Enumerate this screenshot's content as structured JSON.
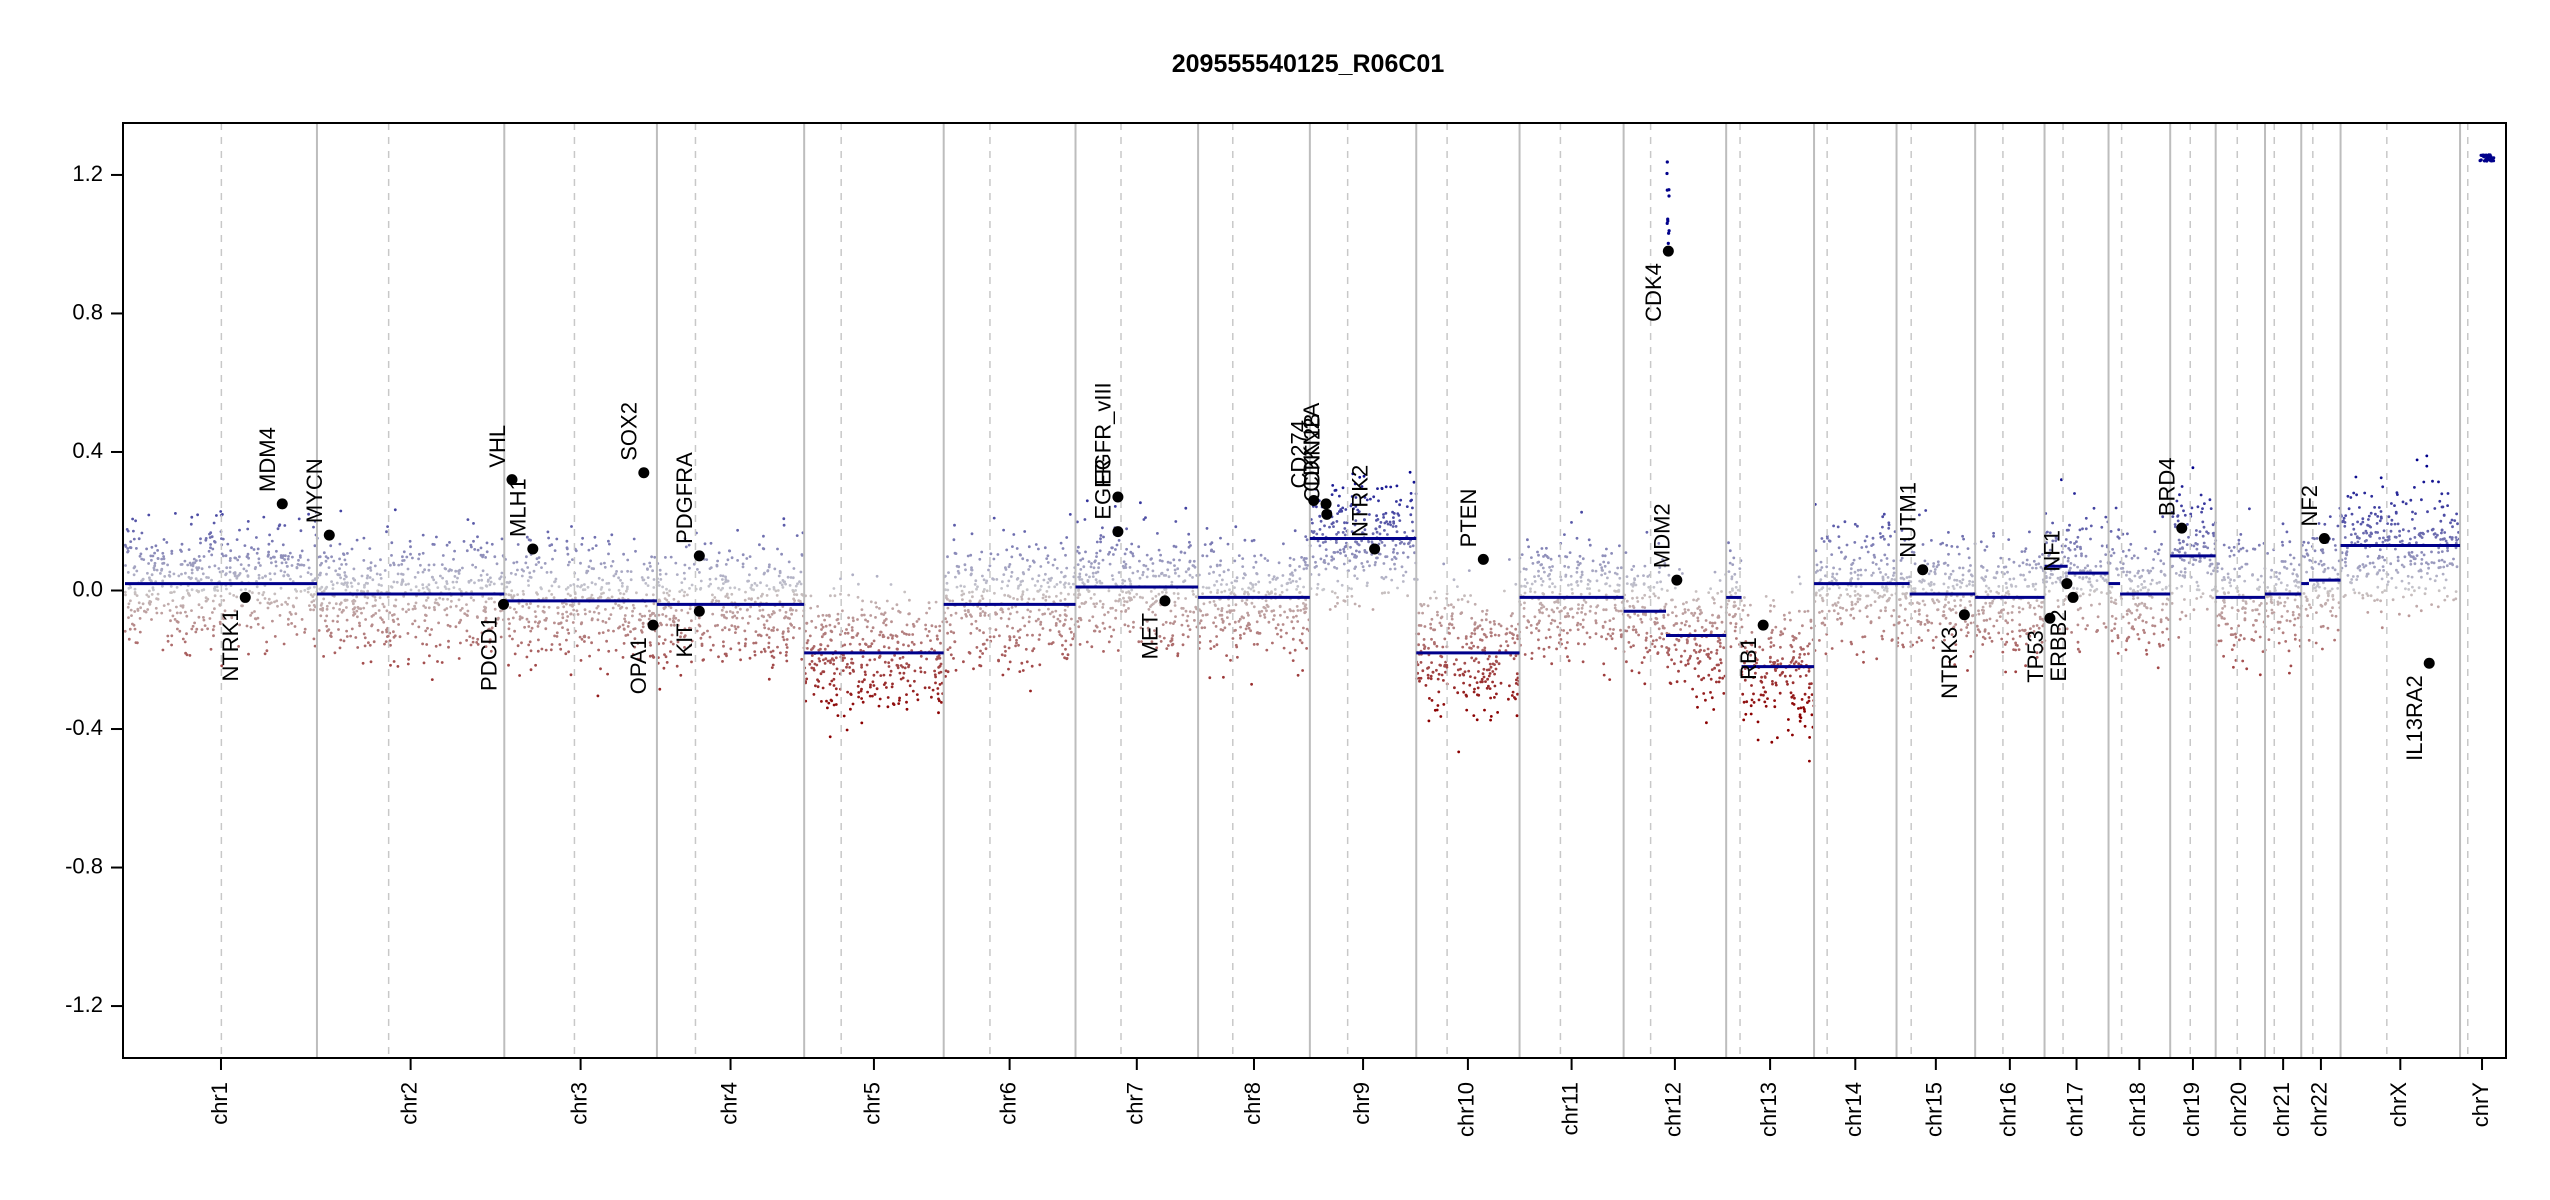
{
  "chart_data": {
    "type": "scatter",
    "title": "209555540125_R06C01",
    "xlabel": "",
    "ylabel": "",
    "ylim": [
      -1.35,
      1.35
    ],
    "yticks": [
      -1.2,
      -0.8,
      -0.4,
      0.0,
      0.4,
      0.8,
      1.2
    ],
    "ytick_labels": [
      "-1.2",
      "-0.8",
      "-0.4",
      "0.0",
      "0.4",
      "0.8",
      "1.2"
    ],
    "grid": false,
    "legend": "none",
    "colors": {
      "gain": "#00008b",
      "loss": "#8b0000",
      "neutral": "#bfbfbf",
      "segment": "#00008b",
      "chrom_boundary": "#bdbdbd",
      "centromere": "#c8c8c8",
      "marker": "#000000"
    },
    "chromosomes": [
      {
        "name": "chr1",
        "length": 249,
        "centromere": 125,
        "segment": 0.02
      },
      {
        "name": "chr2",
        "length": 243,
        "centromere": 93,
        "segment": -0.01
      },
      {
        "name": "chr3",
        "length": 198,
        "centromere": 91,
        "segment": -0.03
      },
      {
        "name": "chr4",
        "length": 191,
        "centromere": 50,
        "segment": -0.04
      },
      {
        "name": "chr5",
        "length": 181,
        "centromere": 48,
        "segment": -0.18
      },
      {
        "name": "chr6",
        "length": 171,
        "centromere": 60,
        "segment": -0.04
      },
      {
        "name": "chr7",
        "length": 159,
        "centromere": 59,
        "segment": 0.01
      },
      {
        "name": "chr8",
        "length": 145,
        "centromere": 45,
        "segment": -0.02
      },
      {
        "name": "chr9",
        "length": 138,
        "centromere": 49,
        "segment": 0.15
      },
      {
        "name": "chr10",
        "length": 134,
        "centromere": 40,
        "segment": -0.18
      },
      {
        "name": "chr11",
        "length": 135,
        "centromere": 53,
        "segment": -0.02
      },
      {
        "name": "chr12",
        "length": 133,
        "centromere": 35,
        "segments": [
          {
            "start": 0,
            "end": 55,
            "value": -0.06
          },
          {
            "start": 55,
            "end": 133,
            "value": -0.13
          }
        ]
      },
      {
        "name": "chr13",
        "length": 114,
        "centromere": 18,
        "segments": [
          {
            "start": 0,
            "end": 20,
            "value": -0.02
          },
          {
            "start": 20,
            "end": 114,
            "value": -0.22
          }
        ]
      },
      {
        "name": "chr14",
        "length": 107,
        "centromere": 17,
        "segment": 0.02
      },
      {
        "name": "chr15",
        "length": 102,
        "centromere": 19,
        "segments": [
          {
            "start": 0,
            "end": 17,
            "value": 0.02
          },
          {
            "start": 17,
            "end": 102,
            "value": -0.01
          }
        ]
      },
      {
        "name": "chr16",
        "length": 90,
        "centromere": 36,
        "segment": -0.02
      },
      {
        "name": "chr17",
        "length": 83,
        "centromere": 24,
        "segments": [
          {
            "start": 0,
            "end": 30,
            "value": 0.07
          },
          {
            "start": 30,
            "end": 83,
            "value": 0.05
          }
        ]
      },
      {
        "name": "chr18",
        "length": 80,
        "centromere": 17,
        "segments": [
          {
            "start": 0,
            "end": 15,
            "value": 0.02
          },
          {
            "start": 15,
            "end": 80,
            "value": -0.01
          }
        ]
      },
      {
        "name": "chr19",
        "length": 59,
        "centromere": 26,
        "segment": 0.1
      },
      {
        "name": "chr20",
        "length": 64,
        "centromere": 28,
        "segment": -0.02
      },
      {
        "name": "chr21",
        "length": 47,
        "centromere": 12,
        "segment": -0.01
      },
      {
        "name": "chr22",
        "length": 51,
        "centromere": 15,
        "segments": [
          {
            "start": 0,
            "end": 10,
            "value": 0.02
          },
          {
            "start": 10,
            "end": 51,
            "value": 0.03
          }
        ]
      },
      {
        "name": "chrX",
        "length": 155,
        "centromere": 60,
        "segment": 0.13
      },
      {
        "name": "chrY",
        "length": 57,
        "centromere": 10,
        "segment": null
      }
    ],
    "genes": [
      {
        "name": "NTRK1",
        "chr": "chr1",
        "pos": 156,
        "value": -0.02,
        "label_side": "below"
      },
      {
        "name": "MDM4",
        "chr": "chr1",
        "pos": 204,
        "value": 0.25,
        "label_side": "above"
      },
      {
        "name": "MYCN",
        "chr": "chr2",
        "pos": 16,
        "value": 0.16,
        "label_side": "above"
      },
      {
        "name": "PDCD1",
        "chr": "chr2",
        "pos": 242,
        "value": -0.04,
        "label_side": "below"
      },
      {
        "name": "VHL",
        "chr": "chr3",
        "pos": 10,
        "value": 0.32,
        "label_side": "above"
      },
      {
        "name": "MLH1",
        "chr": "chr3",
        "pos": 37,
        "value": 0.12,
        "label_side": "above"
      },
      {
        "name": "SOX2",
        "chr": "chr3",
        "pos": 181,
        "value": 0.34,
        "label_side": "above"
      },
      {
        "name": "OPA1",
        "chr": "chr3",
        "pos": 193,
        "value": -0.1,
        "label_side": "below"
      },
      {
        "name": "PDGFRA",
        "chr": "chr4",
        "pos": 55,
        "value": 0.1,
        "label_side": "above"
      },
      {
        "name": "KIT",
        "chr": "chr4",
        "pos": 55,
        "value": -0.06,
        "label_side": "below"
      },
      {
        "name": "EGFR",
        "chr": "chr7",
        "pos": 55,
        "value": 0.17,
        "label_side": "above"
      },
      {
        "name": "EGFR_vIII",
        "chr": "chr7",
        "pos": 55,
        "value": 0.27,
        "label_side": "above"
      },
      {
        "name": "MET",
        "chr": "chr7",
        "pos": 116,
        "value": -0.03,
        "label_side": "below"
      },
      {
        "name": "CD274",
        "chr": "chr9",
        "pos": 5,
        "value": 0.26,
        "label_side": "above"
      },
      {
        "name": "CDKN2A",
        "chr": "chr9",
        "pos": 21,
        "value": 0.25,
        "label_side": "above"
      },
      {
        "name": "CDKN2B",
        "chr": "chr9",
        "pos": 22,
        "value": 0.22,
        "label_side": "above"
      },
      {
        "name": "NTRK2",
        "chr": "chr9",
        "pos": 84,
        "value": 0.12,
        "label_side": "above"
      },
      {
        "name": "PTEN",
        "chr": "chr10",
        "pos": 87,
        "value": 0.09,
        "label_side": "above"
      },
      {
        "name": "CDK4",
        "chr": "chr12",
        "pos": 58,
        "value": 0.98,
        "label_side": "below"
      },
      {
        "name": "MDM2",
        "chr": "chr12",
        "pos": 69,
        "value": 0.03,
        "label_side": "above"
      },
      {
        "name": "RB1",
        "chr": "chr13",
        "pos": 48,
        "value": -0.1,
        "label_side": "below"
      },
      {
        "name": "NUTM1",
        "chr": "chr15",
        "pos": 34,
        "value": 0.06,
        "label_side": "above"
      },
      {
        "name": "NTRK3",
        "chr": "chr15",
        "pos": 88,
        "value": -0.07,
        "label_side": "below"
      },
      {
        "name": "TP53",
        "chr": "chr17",
        "pos": 7,
        "value": -0.08,
        "label_side": "below"
      },
      {
        "name": "NF1",
        "chr": "chr17",
        "pos": 29,
        "value": 0.02,
        "label_side": "above"
      },
      {
        "name": "ERBB2",
        "chr": "chr17",
        "pos": 37,
        "value": -0.02,
        "label_side": "below"
      },
      {
        "name": "BRD4",
        "chr": "chr19",
        "pos": 15,
        "value": 0.18,
        "label_side": "above"
      },
      {
        "name": "NF2",
        "chr": "chr22",
        "pos": 30,
        "value": 0.15,
        "label_side": "above"
      },
      {
        "name": "IL13RA2",
        "chr": "chrX",
        "pos": 115,
        "value": -0.21,
        "label_side": "below"
      }
    ]
  }
}
